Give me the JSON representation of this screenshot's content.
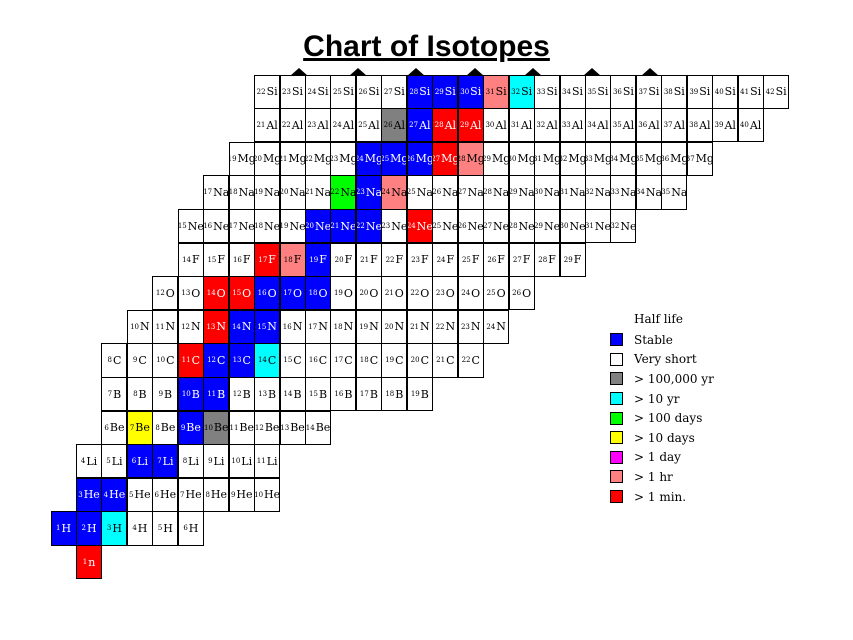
{
  "title": "Chart of Isotopes",
  "colors": {
    "stable": "#0000ff",
    "very_short": "#ffffff",
    "y100000": "#808080",
    "y10": "#00ffff",
    "d100": "#00ff00",
    "d10": "#ffff00",
    "d1": "#ff00ff",
    "h1": "#ff8080",
    "m1": "#ff0000"
  },
  "legend": {
    "title": "Half life",
    "items": [
      {
        "key": "stable",
        "label": "Stable"
      },
      {
        "key": "very_short",
        "label": "Very short"
      },
      {
        "key": "y100000",
        "label": "> 100,000 yr"
      },
      {
        "key": "y10",
        "label": "> 10 yr"
      },
      {
        "key": "d100",
        "label": "> 100 days"
      },
      {
        "key": "d10",
        "label": "> 10 days"
      },
      {
        "key": "d1",
        "label": "> 1 day"
      },
      {
        "key": "h1",
        "label": "> 1 hr"
      },
      {
        "key": "m1",
        "label": "> 1 min."
      }
    ]
  },
  "elements": [
    {
      "z": 0,
      "symbol": "n",
      "start": 1,
      "count": 1,
      "colors": {
        "1": "m1"
      }
    },
    {
      "z": 1,
      "symbol": "H",
      "start": 1,
      "count": 6,
      "colors": {
        "1": "stable",
        "2": "stable",
        "3": "y10"
      }
    },
    {
      "z": 2,
      "symbol": "He",
      "start": 3,
      "count": 8,
      "colors": {
        "3": "stable",
        "4": "stable"
      }
    },
    {
      "z": 3,
      "symbol": "Li",
      "start": 4,
      "count": 8,
      "colors": {
        "6": "stable",
        "7": "stable"
      }
    },
    {
      "z": 4,
      "symbol": "Be",
      "start": 6,
      "count": 9,
      "colors": {
        "7": "d10",
        "9": "stable",
        "10": "y100000"
      }
    },
    {
      "z": 5,
      "symbol": "B",
      "start": 7,
      "count": 13,
      "colors": {
        "10": "stable",
        "11": "stable"
      }
    },
    {
      "z": 6,
      "symbol": "C",
      "start": 8,
      "count": 15,
      "colors": {
        "11": "m1",
        "12": "stable",
        "13": "stable",
        "14": "y10"
      }
    },
    {
      "z": 7,
      "symbol": "N",
      "start": 10,
      "count": 15,
      "colors": {
        "13": "m1",
        "14": "stable",
        "15": "stable"
      }
    },
    {
      "z": 8,
      "symbol": "O",
      "start": 12,
      "count": 15,
      "colors": {
        "14": "m1",
        "15": "m1",
        "16": "stable",
        "17": "stable",
        "18": "stable"
      }
    },
    {
      "z": 9,
      "symbol": "F",
      "start": 14,
      "count": 16,
      "colors": {
        "17": "m1",
        "18": "h1",
        "19": "stable"
      }
    },
    {
      "z": 10,
      "symbol": "Ne",
      "start": 15,
      "count": 18,
      "colors": {
        "20": "stable",
        "21": "stable",
        "22": "stable",
        "24": "m1"
      }
    },
    {
      "z": 11,
      "symbol": "Na",
      "start": 17,
      "count": 19,
      "colors": {
        "22": "d100",
        "23": "stable",
        "24": "h1"
      }
    },
    {
      "z": 12,
      "symbol": "Mg",
      "start": 19,
      "count": 19,
      "colors": {
        "24": "stable",
        "25": "stable",
        "26": "stable",
        "27": "m1",
        "28": "h1"
      }
    },
    {
      "z": 13,
      "symbol": "Al",
      "start": 21,
      "count": 20,
      "colors": {
        "26": "y100000",
        "27": "stable",
        "28": "m1",
        "29": "m1"
      }
    },
    {
      "z": 14,
      "symbol": "Si",
      "start": 22,
      "count": 21,
      "colors": {
        "28": "stable",
        "29": "stable",
        "30": "stable",
        "31": "h1",
        "32": "y10"
      }
    }
  ]
}
